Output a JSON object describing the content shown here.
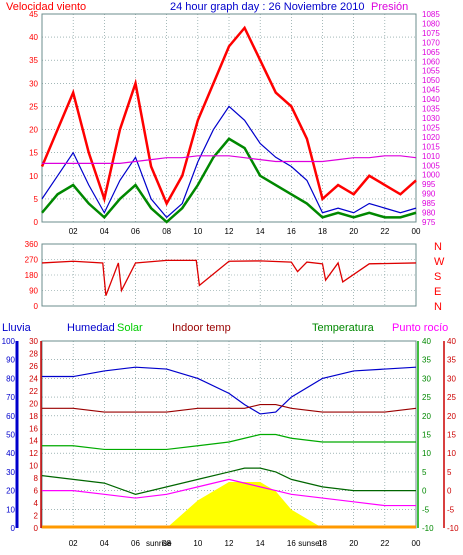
{
  "header": {
    "title": "24 hour graph day : 26 Noviembre 2010",
    "left_label": "Velocidad viento",
    "right_label": "Presión"
  },
  "panels_labels": {
    "rain": "Lluvia",
    "humidity": "Humedad",
    "solar": "Solar",
    "indoor": "Indoor temp",
    "temperature": "Temperatura",
    "dew": "Punto rocío"
  },
  "colors": {
    "wind_gust": "#ff0000",
    "wind_avg": "#0000cc",
    "wind_green": "#008800",
    "pressure": "#dd00dd",
    "direction": "#dd0000",
    "humidity": "#0000cc",
    "solar": "#ffff00",
    "indoor": "#990000",
    "temperature": "#00aa00",
    "dew": "#ff00ff",
    "rain_axis": "#0000cc",
    "grid": "#6b8c8c"
  },
  "chart_data": [
    {
      "type": "line",
      "name": "wind_pressure",
      "x_ticks": [
        "02",
        "04",
        "06",
        "08",
        "10",
        "12",
        "14",
        "16",
        "18",
        "20",
        "22",
        "00"
      ],
      "y_left": {
        "label": "Velocidad viento",
        "ticks": [
          0,
          5,
          10,
          15,
          20,
          25,
          30,
          35,
          40,
          45
        ],
        "range": [
          0,
          45
        ]
      },
      "y_right": {
        "label": "Presión",
        "ticks": [
          975,
          980,
          985,
          990,
          995,
          1000,
          1005,
          1010,
          1015,
          1020,
          1025,
          1030,
          1035,
          1040,
          1045,
          1050,
          1055,
          1060,
          1065,
          1070,
          1075,
          1080,
          1085
        ],
        "range": [
          975,
          1085
        ]
      },
      "x_hours": [
        0,
        1,
        2,
        3,
        4,
        5,
        6,
        7,
        8,
        9,
        10,
        11,
        12,
        13,
        14,
        15,
        16,
        17,
        18,
        19,
        20,
        21,
        22,
        23,
        24
      ],
      "gust": [
        12,
        20,
        28,
        15,
        5,
        20,
        30,
        12,
        4,
        10,
        22,
        30,
        38,
        42,
        35,
        28,
        25,
        18,
        5,
        8,
        6,
        10,
        8,
        6,
        9
      ],
      "average": [
        5,
        10,
        15,
        8,
        2,
        9,
        14,
        5,
        1,
        4,
        13,
        20,
        25,
        22,
        17,
        14,
        12,
        9,
        2,
        3,
        2,
        4,
        3,
        2,
        3
      ],
      "green": [
        2,
        6,
        8,
        4,
        1,
        5,
        8,
        3,
        0,
        3,
        8,
        14,
        18,
        16,
        10,
        8,
        6,
        4,
        1,
        2,
        1,
        2,
        1,
        1,
        2
      ],
      "pressure": [
        1006,
        1006,
        1006,
        1006,
        1006,
        1006,
        1007,
        1008,
        1009,
        1009,
        1010,
        1010,
        1010,
        1009,
        1008,
        1007,
        1007,
        1007,
        1007,
        1008,
        1009,
        1009,
        1010,
        1010,
        1009
      ]
    },
    {
      "type": "line",
      "name": "wind_direction",
      "y_ticks": [
        0,
        90,
        180,
        270,
        360
      ],
      "y_right_labels": [
        "N",
        "W",
        "S",
        "E",
        "N"
      ],
      "x_hours": [
        0,
        2,
        3.9,
        4.1,
        4.9,
        5.1,
        6,
        8,
        9.9,
        10.1,
        12,
        14,
        16,
        16.4,
        17,
        18,
        18.2,
        19,
        19.3,
        21,
        24
      ],
      "direction": [
        250,
        260,
        250,
        60,
        250,
        90,
        250,
        265,
        265,
        120,
        260,
        262,
        255,
        200,
        255,
        245,
        150,
        250,
        140,
        245,
        250
      ]
    },
    {
      "type": "line",
      "name": "climate",
      "x_ticks": [
        "02",
        "04",
        "06",
        "sunrise",
        "08",
        "10",
        "12",
        "14",
        "16",
        "sunset",
        "18",
        "20",
        "22",
        "00"
      ],
      "rain_axis": [
        0,
        10,
        20,
        30,
        40,
        50,
        60,
        70,
        80,
        90,
        100
      ],
      "humidity_axis": [
        0,
        2,
        4,
        6,
        8,
        10,
        12,
        14,
        16,
        18,
        20,
        22,
        24,
        26,
        28,
        30
      ],
      "temp_axis": [
        -10,
        -5,
        0,
        5,
        10,
        15,
        20,
        25,
        30,
        35,
        40
      ],
      "x_hours": [
        0,
        2,
        4,
        6,
        8,
        10,
        12,
        13,
        14,
        15,
        16,
        18,
        20,
        22,
        24
      ],
      "humidity": [
        81,
        81,
        84,
        86,
        85,
        80,
        72,
        66,
        61,
        62,
        70,
        80,
        84,
        85,
        86
      ],
      "indoor": [
        22,
        22,
        21,
        21,
        21,
        22,
        22,
        22,
        23,
        23,
        22,
        21,
        21,
        21,
        22
      ],
      "temperature": [
        12,
        12,
        11,
        11,
        11,
        12,
        13,
        14,
        15,
        15,
        14,
        13,
        13,
        13,
        13
      ],
      "temp_outdoor_green": [
        4,
        3,
        2,
        -1,
        1,
        3,
        5,
        6,
        6,
        5,
        3,
        1,
        0,
        0,
        0
      ],
      "dew": [
        0,
        0,
        -1,
        -2,
        -1,
        1,
        3,
        2,
        1,
        0,
        -1,
        -2,
        -3,
        -4,
        -4
      ],
      "solar_level": [
        0,
        0,
        0,
        0,
        0,
        0.6,
        1.0,
        1.0,
        1.0,
        0.8,
        0.4,
        0,
        0,
        0,
        0
      ]
    }
  ]
}
